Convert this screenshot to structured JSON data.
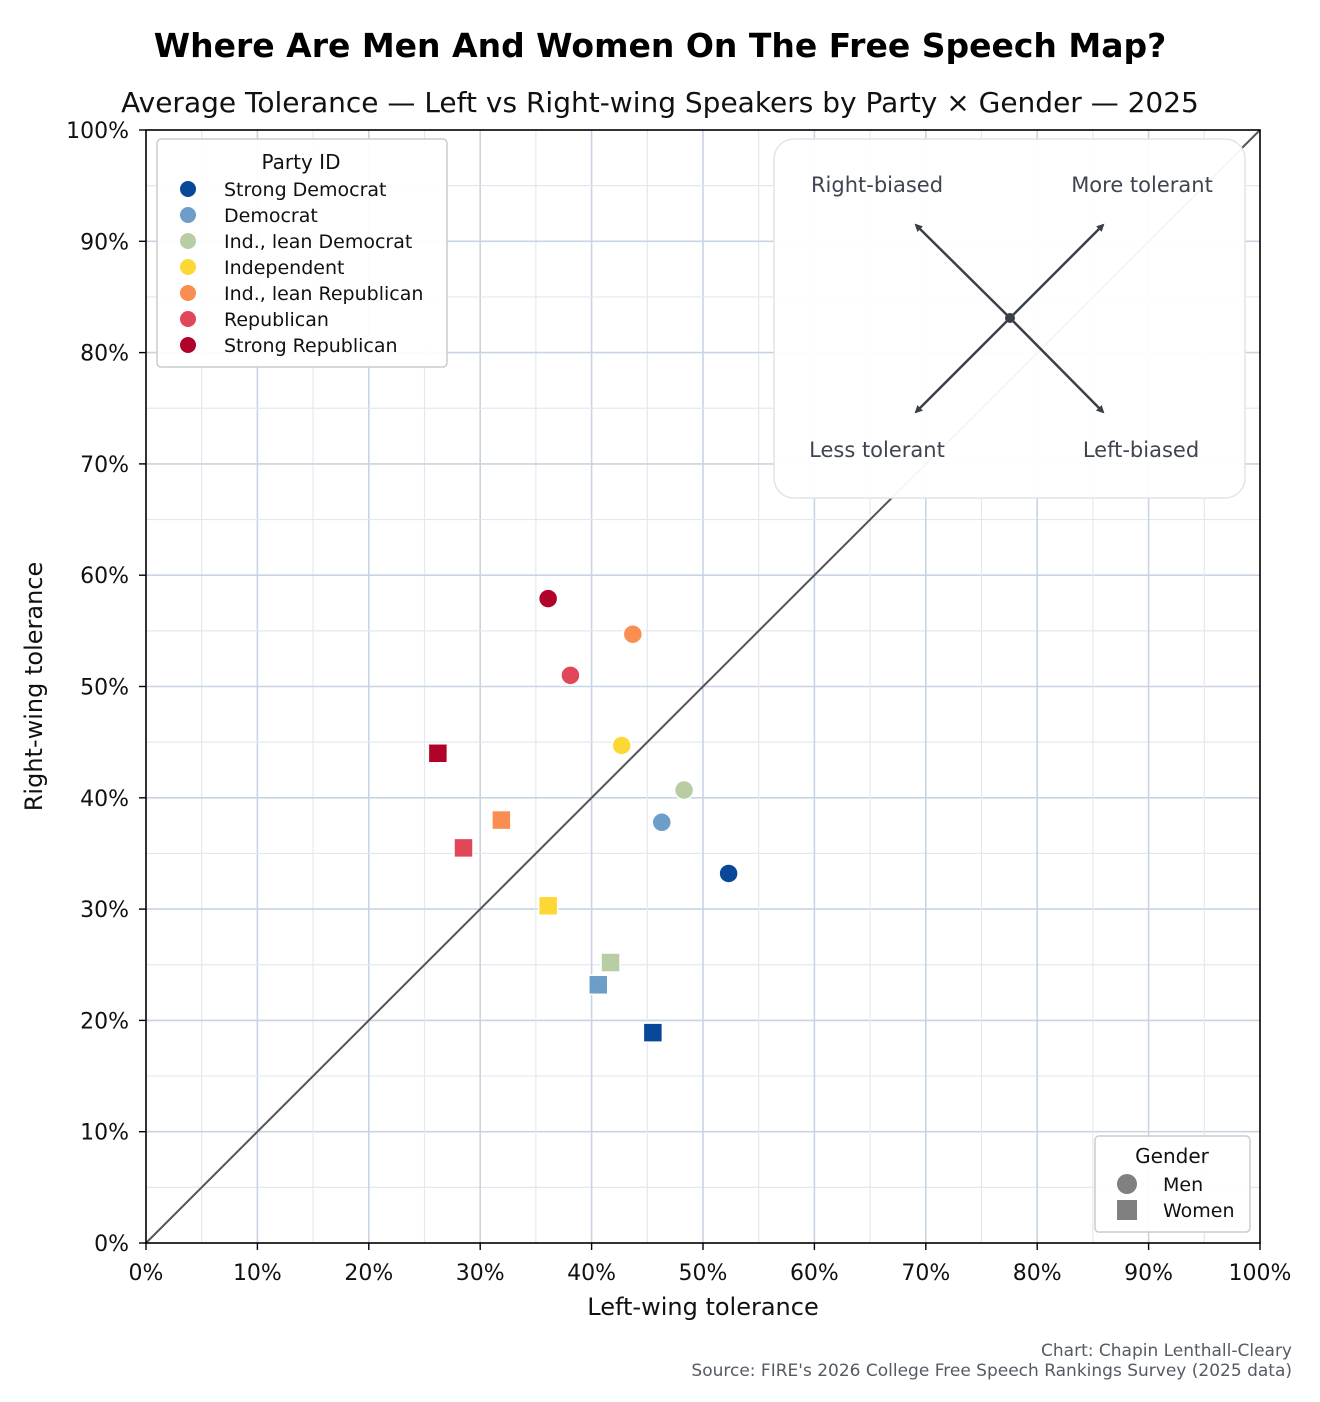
{
  "chart_data": {
    "type": "scatter",
    "title": "Where Are Men And Women On The Free Speech Map?",
    "subtitle": "Average Tolerance — Left vs Right-wing Speakers by Party × Gender — 2025",
    "xlabel": "Left-wing tolerance",
    "ylabel": "Right-wing tolerance",
    "xlim": [
      0,
      100
    ],
    "ylim": [
      0,
      100
    ],
    "xticks": [
      "0%",
      "10%",
      "20%",
      "30%",
      "40%",
      "50%",
      "60%",
      "70%",
      "80%",
      "90%",
      "100%"
    ],
    "yticks": [
      "0%",
      "10%",
      "20%",
      "30%",
      "40%",
      "50%",
      "60%",
      "70%",
      "80%",
      "90%",
      "100%"
    ],
    "grid": true,
    "reference_line": "y = x",
    "party_legend": {
      "title": "Party ID",
      "placement": "top-left",
      "entries": [
        {
          "label": "Strong Democrat",
          "color": "#08479a"
        },
        {
          "label": "Democrat",
          "color": "#6d9dc9"
        },
        {
          "label": "Ind., lean Democrat",
          "color": "#b9cda4"
        },
        {
          "label": "Independent",
          "color": "#fdd835"
        },
        {
          "label": "Ind., lean Republican",
          "color": "#f98d52"
        },
        {
          "label": "Republican",
          "color": "#e04759"
        },
        {
          "label": "Strong Republican",
          "color": "#b00329"
        }
      ]
    },
    "gender_legend": {
      "title": "Gender",
      "placement": "bottom-right",
      "entries": [
        {
          "label": "Men",
          "marker": "circle"
        },
        {
          "label": "Women",
          "marker": "square"
        }
      ]
    },
    "compass": {
      "placement": "top-right",
      "labels": {
        "top_left": "Right-biased",
        "top_right": "More tolerant",
        "bottom_left": "Less tolerant",
        "bottom_right": "Left-biased"
      }
    },
    "series": [
      {
        "name": "Men",
        "marker": "circle",
        "points": [
          {
            "party": "Strong Democrat",
            "x": 52.3,
            "y": 33.2
          },
          {
            "party": "Democrat",
            "x": 46.3,
            "y": 37.8
          },
          {
            "party": "Ind., lean Democrat",
            "x": 48.3,
            "y": 40.7
          },
          {
            "party": "Independent",
            "x": 42.7,
            "y": 44.7
          },
          {
            "party": "Ind., lean Republican",
            "x": 43.7,
            "y": 54.7
          },
          {
            "party": "Republican",
            "x": 38.1,
            "y": 51.0
          },
          {
            "party": "Strong Republican",
            "x": 36.1,
            "y": 57.9
          }
        ]
      },
      {
        "name": "Women",
        "marker": "square",
        "points": [
          {
            "party": "Strong Democrat",
            "x": 45.5,
            "y": 18.9
          },
          {
            "party": "Democrat",
            "x": 40.6,
            "y": 23.2
          },
          {
            "party": "Ind., lean Democrat",
            "x": 41.7,
            "y": 25.2
          },
          {
            "party": "Independent",
            "x": 36.1,
            "y": 30.3
          },
          {
            "party": "Ind., lean Republican",
            "x": 31.9,
            "y": 38.0
          },
          {
            "party": "Republican",
            "x": 28.5,
            "y": 35.5
          },
          {
            "party": "Strong Republican",
            "x": 26.2,
            "y": 44.0
          }
        ]
      }
    ]
  },
  "caption": {
    "credit": "Chart: Chapin Lenthall-Cleary",
    "source": "Source: FIRE's 2026 College Free Speech Rankings Survey (2025 data)"
  }
}
